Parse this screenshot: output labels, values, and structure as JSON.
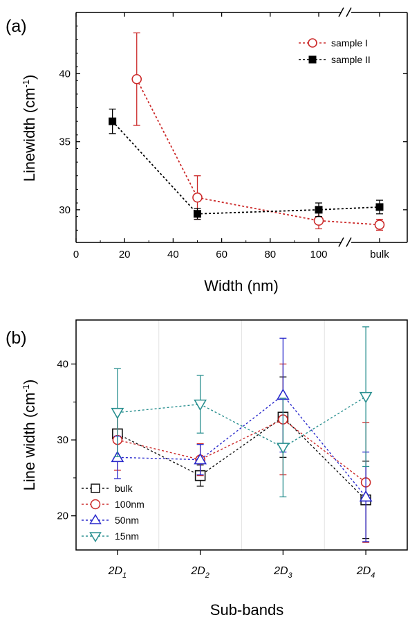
{
  "chart_data": [
    {
      "panel": "(a)",
      "type": "scatter",
      "xlabel": "Width (nm)",
      "ylabel": "Linewidth (cm-1)",
      "ylabel_parts": {
        "main": "Linewidth (cm",
        "sup": "-1",
        "close": ")"
      },
      "x_ticks": [
        "0",
        "20",
        "40",
        "60",
        "80",
        "100",
        "bulk"
      ],
      "y_ticks": [
        "30",
        "35",
        "40"
      ],
      "xlim": [
        0,
        140
      ],
      "ylim": [
        27.6,
        44.5
      ],
      "axis_break": true,
      "legend_placement": "top-right",
      "series": [
        {
          "name": "sample I",
          "color": "#cc2a2a",
          "marker": "open-circle",
          "line": "dashed",
          "x": [
            "25",
            "50",
            "100",
            "bulk"
          ],
          "y": [
            39.6,
            30.9,
            29.2,
            28.9
          ],
          "err": [
            3.4,
            1.6,
            0.6,
            0.4
          ]
        },
        {
          "name": "sample II",
          "color": "#000000",
          "marker": "filled-square",
          "line": "dashed",
          "x": [
            "15",
            "50",
            "100",
            "bulk"
          ],
          "y": [
            36.5,
            29.7,
            30.0,
            30.2
          ],
          "err": [
            0.9,
            0.4,
            0.5,
            0.5
          ]
        }
      ]
    },
    {
      "panel": "(b)",
      "type": "scatter",
      "xlabel": "Sub-bands",
      "ylabel": "Line width (cm-1)",
      "ylabel_parts": {
        "main": "Line width (cm",
        "sup": "-1",
        "close": ")"
      },
      "categories": [
        {
          "main": "2D",
          "sub": "1"
        },
        {
          "main": "2D",
          "sub": "2"
        },
        {
          "main": "2D",
          "sub": "3"
        },
        {
          "main": "2D",
          "sub": "4"
        }
      ],
      "y_ticks": [
        "20",
        "30",
        "40"
      ],
      "ylim": [
        15.5,
        45.8
      ],
      "legend_placement": "bottom-left",
      "series": [
        {
          "name": "bulk",
          "color": "#111111",
          "marker": "open-square",
          "line": "dashed",
          "values": [
            30.8,
            25.3,
            33.0,
            22.1
          ],
          "err": [
            3.0,
            1.4,
            5.3,
            5.1
          ]
        },
        {
          "name": "100nm",
          "color": "#cc2a2a",
          "marker": "open-circle",
          "line": "dashed",
          "values": [
            30.0,
            27.4,
            32.7,
            24.4
          ],
          "err": [
            4.0,
            2.1,
            7.3,
            7.9
          ]
        },
        {
          "name": "50nm",
          "color": "#2a2acc",
          "marker": "open-triangle-up",
          "line": "dashed",
          "values": [
            27.7,
            27.4,
            35.9,
            22.5
          ],
          "err": [
            2.8,
            2.0,
            7.5,
            5.9
          ]
        },
        {
          "name": "15nm",
          "color": "#2a9090",
          "marker": "open-triangle-down",
          "line": "dashed",
          "values": [
            33.6,
            34.7,
            29.0,
            35.7
          ],
          "err": [
            5.8,
            3.8,
            6.5,
            9.2
          ]
        }
      ]
    }
  ]
}
